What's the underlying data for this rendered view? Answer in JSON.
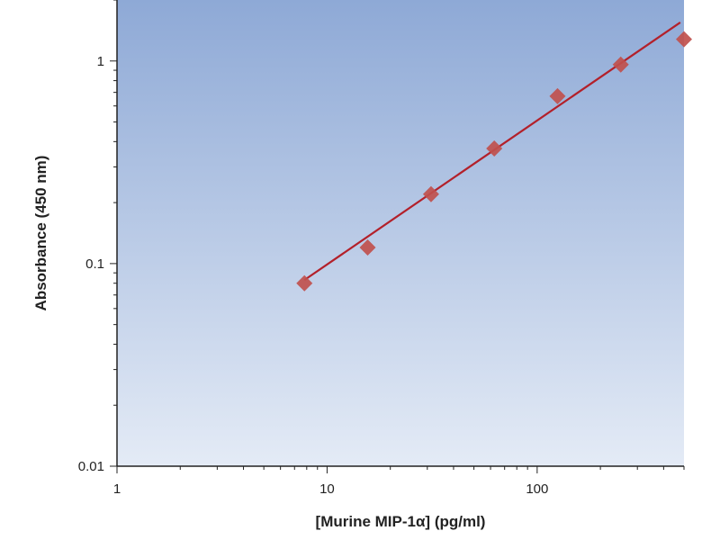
{
  "chart_data": {
    "type": "scatter",
    "title": "",
    "xlabel": "[Murine MIP-1α] (pg/ml)",
    "ylabel": "Absorbance (450 nm)",
    "x_scale": "log",
    "y_scale": "log",
    "xlim": [
      1,
      500
    ],
    "ylim": [
      0.01,
      2
    ],
    "x_ticks": [
      {
        "value": 1,
        "label": "1"
      },
      {
        "value": 10,
        "label": "10"
      },
      {
        "value": 100,
        "label": "100"
      }
    ],
    "y_ticks": [
      {
        "value": 0.01,
        "label": "0.01"
      },
      {
        "value": 0.1,
        "label": "0.1"
      },
      {
        "value": 1,
        "label": "1"
      }
    ],
    "grid": false,
    "legend": "none",
    "series": [
      {
        "marker": "diamond",
        "x": [
          7.8,
          15.6,
          31.25,
          62.5,
          125,
          250,
          500
        ],
        "y": [
          0.08,
          0.12,
          0.22,
          0.37,
          0.67,
          0.96,
          1.28
        ]
      }
    ],
    "fit_line": {
      "x": [
        7.8,
        480
      ],
      "y": [
        0.083,
        1.55
      ]
    },
    "colors": {
      "marker": "#c0504d",
      "fit_line": "#b3202a",
      "plot_bg_top": "#8ea9d6",
      "plot_bg_bottom": "#e4ebf6",
      "axis": "#222222"
    }
  }
}
